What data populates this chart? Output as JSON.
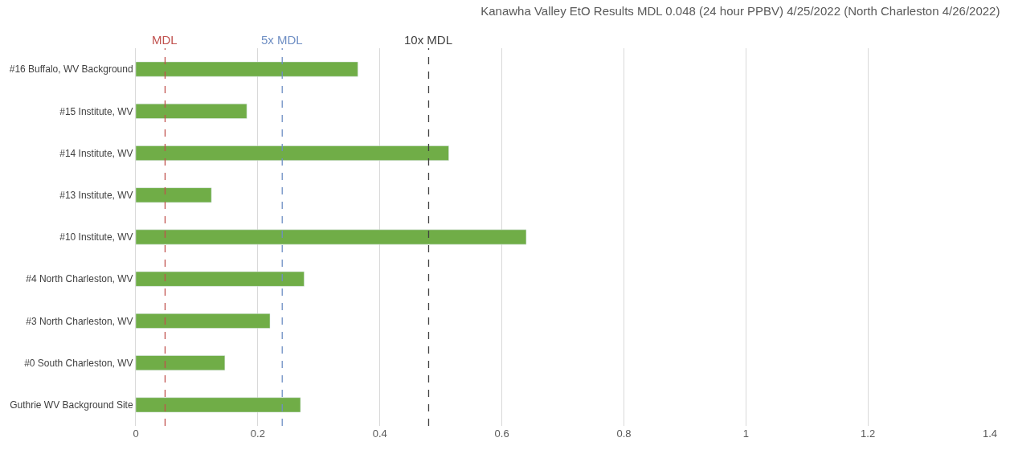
{
  "chart_data": {
    "type": "bar",
    "orientation": "horizontal",
    "title": "Kanawha Valley EtO Results MDL 0.048 (24 hour PPBV) 4/25/2022 (North Charleston 4/26/2022)",
    "categories": [
      "#16 Buffalo, WV Background",
      "#15 Institute, WV",
      "#14 Institute, WV",
      "#13 Institute, WV",
      "#10 Institute, WV",
      "#4 North Charleston, WV",
      "#3 North Charleston, WV",
      "#0 South Charleston, WV",
      "Guthrie WV Background Site"
    ],
    "values": [
      0.364,
      0.182,
      0.513,
      0.124,
      0.64,
      0.276,
      0.22,
      0.146,
      0.27
    ],
    "color": "#70ad47",
    "xlim": [
      0,
      1.4
    ],
    "xticks": [
      0,
      0.2,
      0.4,
      0.6,
      0.8,
      1,
      1.2,
      1.4
    ],
    "grid": "x",
    "legend": false,
    "ref_lines": [
      {
        "axis": "x",
        "value": 0.048,
        "label": "MDL",
        "color": "#c0504d",
        "line_style": "dashed"
      },
      {
        "axis": "x",
        "value": 0.24,
        "label": "5x MDL",
        "color": "#6f8fc4",
        "line_style": "dashed"
      },
      {
        "axis": "x",
        "value": 0.48,
        "label": "10x MDL",
        "color": "#404040",
        "line_style": "dashed"
      }
    ]
  }
}
